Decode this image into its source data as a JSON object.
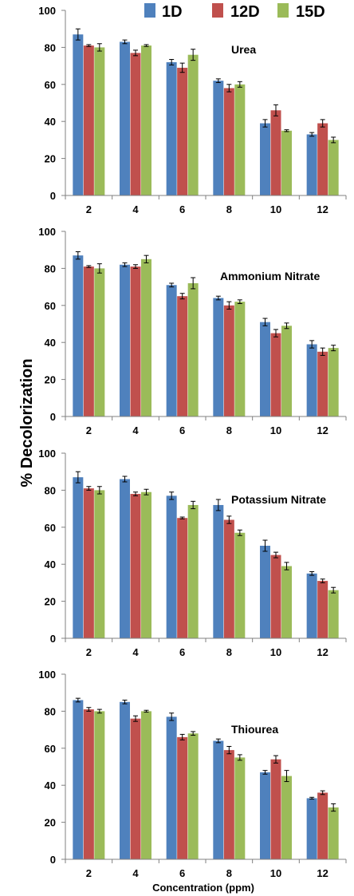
{
  "chart_data": {
    "type": "bar",
    "ylabel": "% Decolorization",
    "xlabel": "Concentration (ppm)",
    "ylim": [
      0,
      100
    ],
    "yticks": [
      "0",
      "20",
      "40",
      "60",
      "80",
      "100"
    ],
    "categories": [
      "2",
      "4",
      "6",
      "8",
      "10",
      "12"
    ],
    "grid": false,
    "legend": {
      "placement": "top-right",
      "entries": [
        {
          "name": "1D",
          "color": "#4f81bd"
        },
        {
          "name": "12D",
          "color": "#c0504d"
        },
        {
          "name": "15D",
          "color": "#9bbb59"
        }
      ]
    },
    "panels": [
      {
        "title": "Urea",
        "series": [
          {
            "name": "1D",
            "values": [
              87,
              83,
              72,
              62,
              39,
              33
            ],
            "errors": [
              3,
              1,
              1.5,
              1,
              2,
              1
            ]
          },
          {
            "name": "12D",
            "values": [
              81,
              77,
              69,
              58,
              46,
              39
            ],
            "errors": [
              0.5,
              1.5,
              2.5,
              2,
              3,
              2
            ]
          },
          {
            "name": "15D",
            "values": [
              80,
              81,
              76,
              60,
              35,
              30
            ],
            "errors": [
              2,
              0.5,
              3,
              1.5,
              0.5,
              1.5
            ]
          }
        ]
      },
      {
        "title": "Ammonium Nitrate",
        "series": [
          {
            "name": "1D",
            "values": [
              87,
              82,
              71,
              64,
              51,
              39
            ],
            "errors": [
              2,
              1,
              1,
              1,
              2,
              2
            ]
          },
          {
            "name": "12D",
            "values": [
              81,
              81,
              65,
              60,
              45,
              35
            ],
            "errors": [
              0.5,
              1,
              1.5,
              2,
              2,
              2
            ]
          },
          {
            "name": "15D",
            "values": [
              80,
              85,
              72,
              62,
              49,
              37
            ],
            "errors": [
              2.5,
              2,
              3,
              1,
              1.5,
              1.5
            ]
          }
        ]
      },
      {
        "title": "Potassium Nitrate",
        "series": [
          {
            "name": "1D",
            "values": [
              87,
              86,
              77,
              72,
              50,
              35
            ],
            "errors": [
              3,
              1.5,
              2,
              3,
              3,
              1
            ]
          },
          {
            "name": "12D",
            "values": [
              81,
              78,
              65,
              64,
              45,
              31
            ],
            "errors": [
              1,
              1,
              0.5,
              2,
              1.5,
              1
            ]
          },
          {
            "name": "15D",
            "values": [
              80,
              79,
              72,
              57,
              39,
              26
            ],
            "errors": [
              2,
              1.5,
              2,
              1.5,
              2,
              1.5
            ]
          }
        ]
      },
      {
        "title": "Thiourea",
        "series": [
          {
            "name": "1D",
            "values": [
              86,
              85,
              77,
              64,
              47,
              33
            ],
            "errors": [
              1,
              1,
              2,
              1,
              1,
              0.5
            ]
          },
          {
            "name": "12D",
            "values": [
              81,
              76,
              66,
              59,
              54,
              36
            ],
            "errors": [
              1,
              1.5,
              1.5,
              2,
              2,
              1
            ]
          },
          {
            "name": "15D",
            "values": [
              80,
              80,
              68,
              55,
              45,
              28
            ],
            "errors": [
              1,
              0.5,
              1,
              1.5,
              3,
              2
            ]
          }
        ]
      }
    ]
  }
}
